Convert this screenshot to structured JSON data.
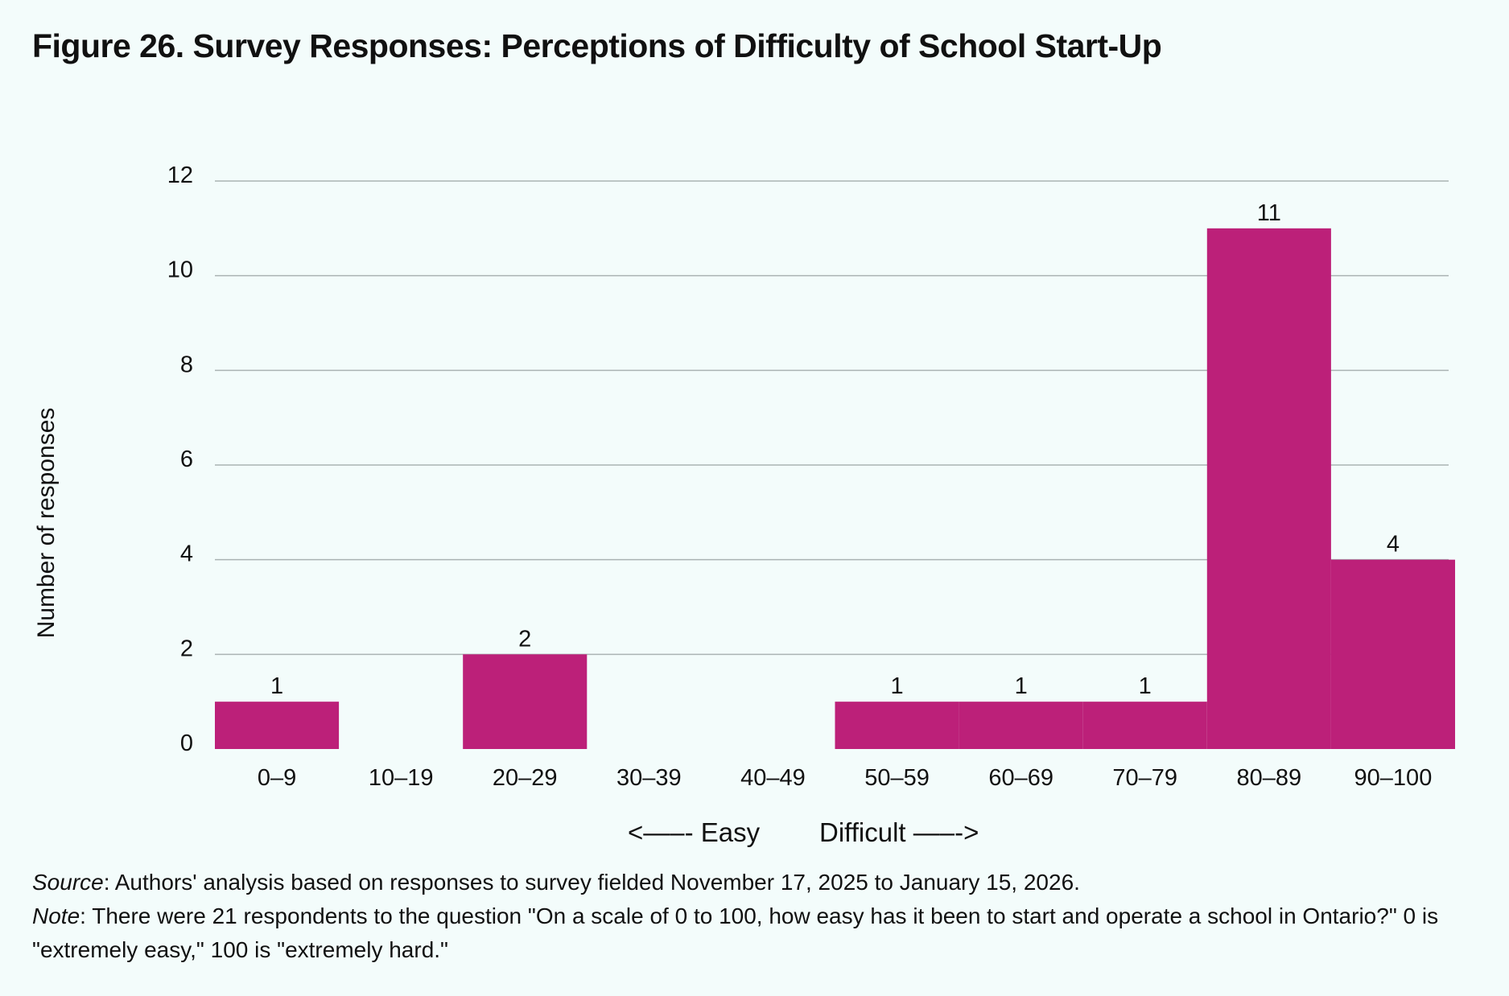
{
  "title": "Figure 26. Survey Responses: Perceptions of Difficulty of School Start-Up",
  "chart_data": {
    "type": "bar",
    "title": "Figure 26. Survey Responses: Perceptions of Difficulty of School Start-Up",
    "categories": [
      "0–9",
      "10–19",
      "20–29",
      "30–39",
      "40–49",
      "50–59",
      "60–69",
      "70–79",
      "80–89",
      "90–100"
    ],
    "values": [
      1,
      0,
      2,
      0,
      0,
      1,
      1,
      1,
      11,
      4
    ],
    "data_labels": [
      "1",
      "",
      "2",
      "",
      "",
      "1",
      "1",
      "1",
      "11",
      "4"
    ],
    "ylabel": "Number of responses",
    "xlabel": "",
    "ylim": [
      0,
      12
    ],
    "yticks": [
      0,
      2,
      4,
      6,
      8,
      10,
      12
    ],
    "grid": true,
    "bar_color": "#bc2079",
    "grid_color": "#aab3b3"
  },
  "scale_easy": "<—–- Easy",
  "scale_difficult": "Difficult —–->",
  "source_label": "Source",
  "source_text": ": Authors' analysis based on responses to survey fielded November 17, 2025 to January 15, 2026.",
  "note_label": "Note",
  "note_text": ": There were 21 respondents to the question \"On a scale of 0 to 100, how easy has it been to start and operate a school in Ontario?\" 0 is \"extremely easy,\" 100 is \"extremely hard.\""
}
